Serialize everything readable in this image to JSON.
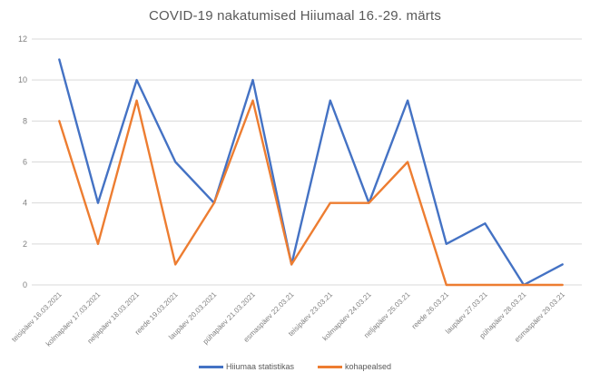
{
  "chart_data": {
    "type": "line",
    "title": "COVID-19 nakatumised Hiiumaal 16.-29. märts",
    "categories": [
      "teisipäev 16.03.2021",
      "kolmapäev 17.03.2021",
      "neljapäev 18.03.2021",
      "reede 19.03.2021",
      "laupäev 20.03.2021",
      "pühapäev 21.03.2021",
      "esmaspäev 22.03.21",
      "teisipäev 23.03.21",
      "kolmapäev 24.03.21",
      "neljapäev 25.03.21",
      "reede 26.03.21",
      "laupäev 27.03.21",
      "pühapäev 28.03.21",
      "esmaspäev 29.03.21"
    ],
    "series": [
      {
        "name": "Hiiumaa statistikas",
        "color": "#4472C4",
        "values": [
          11,
          4,
          10,
          6,
          4,
          10,
          1,
          9,
          4,
          9,
          2,
          3,
          0,
          1
        ]
      },
      {
        "name": "kohapealsed",
        "color": "#ED7D31",
        "values": [
          8,
          2,
          9,
          1,
          4,
          9,
          1,
          4,
          4,
          6,
          0,
          0,
          0,
          0
        ]
      }
    ],
    "ylim": [
      0,
      12
    ],
    "ytick_step": 2,
    "yticks": [
      0,
      2,
      4,
      6,
      8,
      10,
      12
    ],
    "grid": true,
    "legend_position": "bottom",
    "gridline_color": "#D9D9D9",
    "axis_text_color": "#808080",
    "title_color": "#595959"
  }
}
